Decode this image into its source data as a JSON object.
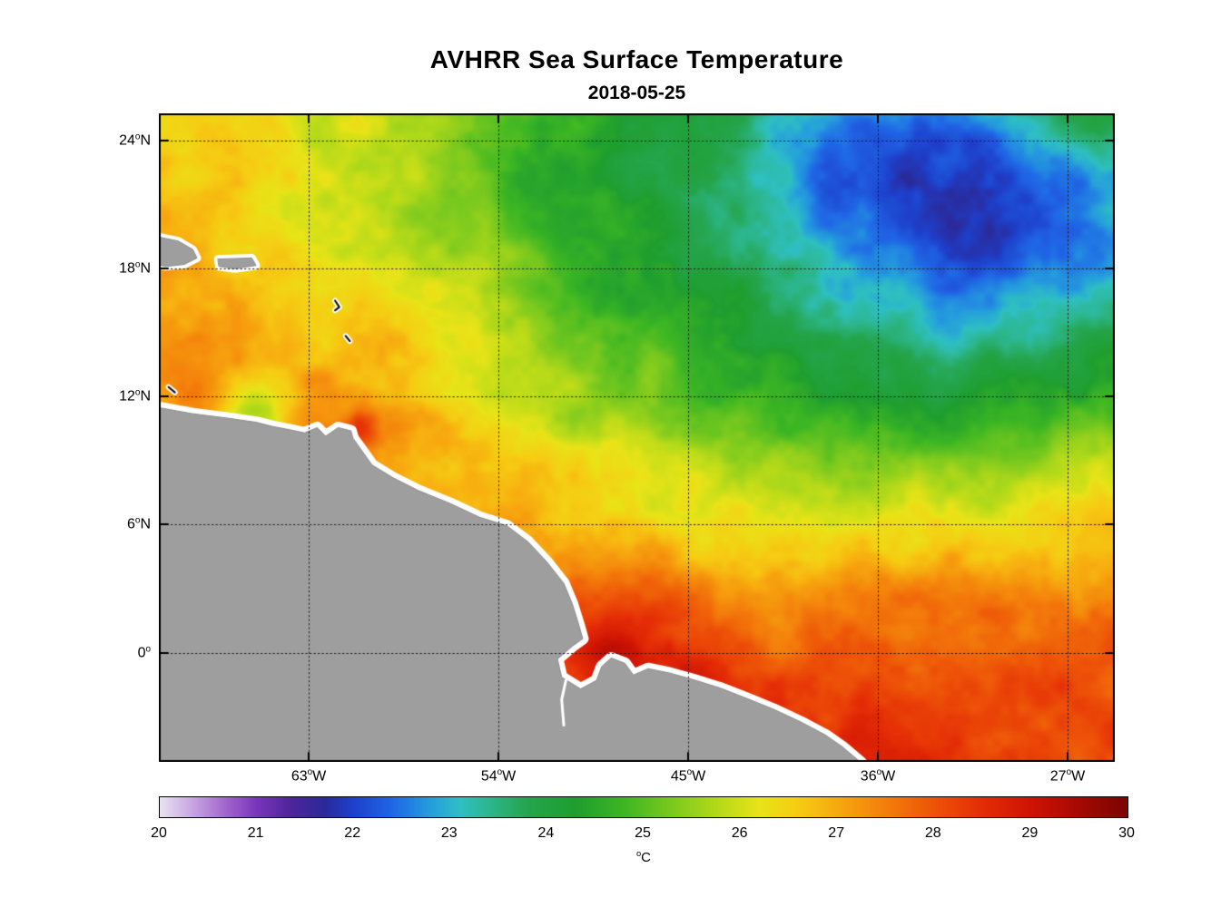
{
  "title": "AVHRR Sea Surface Temperature",
  "subtitle": "2018-05-25",
  "axes": {
    "lon_min": -70.11,
    "lon_max": -24.76,
    "lat_min": -5.12,
    "lat_max": 25.28,
    "degree_symbol": "o",
    "x_ticks": [
      {
        "lon": -63,
        "deg": "63",
        "hemi": "W"
      },
      {
        "lon": -54,
        "deg": "54",
        "hemi": "W"
      },
      {
        "lon": -45,
        "deg": "45",
        "hemi": "W"
      },
      {
        "lon": -36,
        "deg": "36",
        "hemi": "W"
      },
      {
        "lon": -27,
        "deg": "27",
        "hemi": "W"
      }
    ],
    "y_ticks": [
      {
        "lat": 24,
        "deg": "24",
        "hemi": "N"
      },
      {
        "lat": 18,
        "deg": "18",
        "hemi": "N"
      },
      {
        "lat": 12,
        "deg": "12",
        "hemi": "N"
      },
      {
        "lat": 6,
        "deg": "6",
        "hemi": "N"
      },
      {
        "lat": 0,
        "deg": "0",
        "hemi": ""
      }
    ]
  },
  "colorbar": {
    "min": 20,
    "max": 30,
    "ticks": [
      20,
      21,
      22,
      23,
      24,
      25,
      26,
      27,
      28,
      29,
      30
    ],
    "unit": "°C",
    "unit_sup": "o",
    "unit_main": "C"
  },
  "colormap": [
    [
      20.0,
      "#e8e3f2"
    ],
    [
      20.35,
      "#c7a3e0"
    ],
    [
      20.7,
      "#9f63cc"
    ],
    [
      21.0,
      "#7a36bb"
    ],
    [
      21.35,
      "#50249c"
    ],
    [
      21.7,
      "#2b2a9a"
    ],
    [
      22.0,
      "#1e41cc"
    ],
    [
      22.4,
      "#1f67e6"
    ],
    [
      22.8,
      "#259fdd"
    ],
    [
      23.1,
      "#2fc0c3"
    ],
    [
      23.45,
      "#2cb586"
    ],
    [
      23.8,
      "#25a54d"
    ],
    [
      24.3,
      "#1f9e2f"
    ],
    [
      24.8,
      "#3eb723"
    ],
    [
      25.3,
      "#7cca1e"
    ],
    [
      25.8,
      "#b9db19"
    ],
    [
      26.2,
      "#e9e417"
    ],
    [
      26.6,
      "#f6cd13"
    ],
    [
      27.0,
      "#f7aa0f"
    ],
    [
      27.5,
      "#f47f0b"
    ],
    [
      28.0,
      "#ee5408"
    ],
    [
      28.5,
      "#e52d06"
    ],
    [
      29.0,
      "#d01404"
    ],
    [
      29.5,
      "#a60a03"
    ],
    [
      30.0,
      "#7d0502"
    ]
  ],
  "chart_data": {
    "type": "heatmap",
    "title": "AVHRR Sea Surface Temperature",
    "date": "2018-05-25",
    "units": "°C",
    "value_range": [
      20,
      30
    ],
    "x_ticks_lon": [
      -63,
      -54,
      -45,
      -36,
      -27
    ],
    "y_ticks_lat": [
      24,
      18,
      12,
      6,
      0
    ],
    "lon_grid": {
      "start": -70,
      "step": 3,
      "count": 16
    },
    "lat_grid": {
      "start": 26,
      "step": -2,
      "count": 17
    },
    "sst": [
      [
        26.5,
        26.3,
        26.1,
        25.9,
        25.6,
        25.2,
        24.8,
        24.5,
        24.2,
        23.9,
        23.5,
        23.1,
        23.0,
        23.4,
        23.9,
        24.3
      ],
      [
        26.5,
        26.4,
        26.2,
        25.9,
        25.6,
        25.1,
        24.7,
        24.4,
        24.1,
        23.6,
        23.0,
        22.5,
        22.3,
        22.6,
        23.1,
        23.6
      ],
      [
        26.6,
        26.5,
        26.3,
        26.0,
        25.6,
        25.1,
        24.6,
        24.3,
        23.9,
        23.4,
        22.7,
        22.2,
        22.1,
        22.3,
        22.7,
        23.1
      ],
      [
        26.8,
        26.6,
        26.4,
        26.1,
        25.7,
        25.2,
        24.7,
        24.4,
        24.0,
        23.5,
        22.9,
        22.3,
        22.1,
        22.2,
        22.5,
        22.9
      ],
      [
        27.0,
        26.8,
        26.6,
        26.3,
        25.9,
        25.4,
        25.0,
        24.6,
        24.3,
        23.9,
        23.4,
        22.8,
        22.4,
        22.4,
        22.7,
        23.0
      ],
      [
        27.2,
        27.0,
        26.8,
        26.5,
        26.1,
        25.7,
        25.2,
        24.9,
        24.6,
        24.2,
        23.8,
        23.3,
        23.0,
        22.9,
        23.2,
        23.5
      ],
      [
        27.3,
        27.2,
        27.0,
        26.7,
        26.4,
        26.0,
        25.5,
        25.2,
        24.9,
        24.6,
        24.3,
        23.9,
        23.7,
        23.6,
        23.9,
        24.2
      ],
      [
        27.2,
        27.3,
        27.1,
        26.9,
        26.6,
        26.2,
        25.8,
        25.4,
        25.0,
        24.8,
        24.6,
        24.4,
        24.3,
        24.3,
        24.5,
        24.8
      ],
      [
        27.3,
        27.1,
        27.3,
        27.1,
        26.9,
        26.6,
        26.2,
        25.9,
        25.6,
        25.4,
        25.2,
        25.0,
        24.9,
        25.0,
        25.3,
        25.6
      ],
      [
        27.4,
        27.4,
        27.3,
        27.2,
        27.0,
        26.8,
        26.6,
        26.3,
        26.1,
        25.9,
        25.7,
        25.6,
        25.6,
        25.7,
        25.9,
        26.1
      ],
      [
        27.5,
        27.5,
        27.4,
        27.3,
        27.2,
        27.1,
        26.9,
        26.7,
        26.5,
        26.4,
        26.3,
        26.2,
        26.3,
        26.4,
        26.5,
        26.7
      ],
      [
        27.5,
        27.5,
        27.5,
        27.4,
        27.4,
        27.3,
        27.2,
        27.1,
        27.0,
        26.9,
        26.8,
        26.9,
        26.9,
        27.0,
        27.1,
        27.3
      ],
      [
        27.5,
        27.5,
        27.5,
        27.5,
        27.5,
        27.6,
        27.7,
        27.7,
        27.6,
        27.5,
        27.4,
        27.4,
        27.5,
        27.6,
        27.7,
        27.7
      ],
      [
        27.5,
        27.5,
        27.5,
        27.5,
        27.6,
        27.9,
        28.3,
        28.5,
        28.2,
        27.9,
        27.8,
        27.8,
        27.9,
        27.9,
        28.0,
        28.0
      ],
      [
        27.5,
        27.5,
        27.5,
        27.6,
        27.7,
        28.0,
        28.5,
        28.8,
        28.5,
        28.2,
        28.1,
        28.2,
        28.2,
        28.2,
        28.2,
        28.1
      ],
      [
        27.5,
        27.5,
        27.5,
        27.6,
        27.8,
        28.1,
        28.6,
        28.9,
        28.7,
        28.5,
        28.4,
        28.5,
        28.4,
        28.3,
        28.2,
        28.1
      ],
      [
        27.5,
        27.5,
        27.5,
        27.6,
        27.8,
        28.2,
        28.6,
        28.9,
        28.8,
        28.6,
        28.5,
        28.6,
        28.5,
        28.4,
        28.3,
        28.1
      ]
    ],
    "anomalies": [
      {
        "lon": -65.6,
        "lat": 11.15,
        "r": 1.0,
        "d": -1.5
      },
      {
        "lon": -60.55,
        "lat": 10.45,
        "r": 0.65,
        "d": 1.6
      },
      {
        "lon": -47.6,
        "lat": 0.9,
        "r": 2.2,
        "d": 0.6
      },
      {
        "lon": -29.5,
        "lat": 20.5,
        "r": 3.2,
        "d": -0.35
      },
      {
        "lon": -57.0,
        "lat": 16.5,
        "r": 2.5,
        "d": 0.25
      },
      {
        "lon": -44.0,
        "lat": -2.0,
        "r": 2.0,
        "d": 0.25
      }
    ],
    "noise": {
      "octaves": [
        [
          2.0,
          0.3,
          11.3,
          7.7
        ],
        [
          0.85,
          0.17,
          23.1,
          15.9
        ],
        [
          0.38,
          0.09,
          41.7,
          33.2
        ]
      ]
    },
    "land_color": "#9e9e9e",
    "land_edge_color": "#8c8c8c",
    "coast_halo_color": "#ffffff",
    "small_island_color": "#111111",
    "grid_line_color": "#1a1a1a",
    "land": {
      "mainland": [
        [
          -70.2,
          11.5
        ],
        [
          -68.5,
          11.2
        ],
        [
          -66.9,
          11.0
        ],
        [
          -65.5,
          10.8
        ],
        [
          -64.7,
          10.6
        ],
        [
          -63.9,
          10.45
        ],
        [
          -63.2,
          10.3
        ],
        [
          -62.6,
          10.55
        ],
        [
          -62.2,
          10.15
        ],
        [
          -61.6,
          10.55
        ],
        [
          -61.0,
          10.4
        ],
        [
          -60.9,
          10.05
        ],
        [
          -60.5,
          9.5
        ],
        [
          -60.0,
          8.8
        ],
        [
          -59.0,
          8.2
        ],
        [
          -57.8,
          7.6
        ],
        [
          -56.3,
          7.0
        ],
        [
          -54.9,
          6.35
        ],
        [
          -53.6,
          5.95
        ],
        [
          -52.6,
          5.2
        ],
        [
          -51.7,
          4.25
        ],
        [
          -50.9,
          3.25
        ],
        [
          -50.5,
          2.3
        ],
        [
          -50.2,
          1.35
        ],
        [
          -50.0,
          0.65
        ],
        [
          -50.5,
          0.3
        ],
        [
          -51.2,
          -0.3
        ],
        [
          -51.0,
          -1.15
        ],
        [
          -50.1,
          -1.7
        ],
        [
          -49.35,
          -1.3
        ],
        [
          -49.1,
          -0.65
        ],
        [
          -48.65,
          -0.25
        ],
        [
          -48.0,
          -0.5
        ],
        [
          -47.6,
          -1.05
        ],
        [
          -46.9,
          -0.75
        ],
        [
          -45.9,
          -0.95
        ],
        [
          -44.8,
          -1.25
        ],
        [
          -43.5,
          -1.65
        ],
        [
          -42.2,
          -2.15
        ],
        [
          -40.95,
          -2.65
        ],
        [
          -39.65,
          -3.25
        ],
        [
          -38.5,
          -3.85
        ],
        [
          -37.7,
          -4.4
        ],
        [
          -36.8,
          -5.15
        ],
        [
          -36.6,
          -5.7
        ],
        [
          -71.0,
          -5.7
        ],
        [
          -71.0,
          11.5
        ]
      ],
      "islands": [
        [
          [
            -70.2,
            19.5
          ],
          [
            -69.2,
            19.3
          ],
          [
            -68.5,
            18.9
          ],
          [
            -68.3,
            18.5
          ],
          [
            -68.9,
            18.2
          ],
          [
            -69.8,
            18.1
          ],
          [
            -70.2,
            18.2
          ]
        ],
        [
          [
            -67.3,
            18.45
          ],
          [
            -65.7,
            18.5
          ],
          [
            -65.5,
            18.15
          ],
          [
            -66.5,
            18.0
          ],
          [
            -67.25,
            18.1
          ]
        ]
      ],
      "small_islands": [
        [
          [
            -61.75,
            16.5
          ],
          [
            -61.55,
            16.2
          ],
          [
            -61.75,
            16.05
          ]
        ],
        [
          [
            -61.25,
            14.85
          ],
          [
            -61.05,
            14.6
          ]
        ],
        [
          [
            -69.65,
            12.45
          ],
          [
            -69.35,
            12.2
          ]
        ]
      ],
      "rivers": [
        [
          [
            -50.8,
            -1.3
          ],
          [
            -51.0,
            -2.2
          ],
          [
            -50.9,
            -3.4
          ]
        ]
      ]
    }
  }
}
